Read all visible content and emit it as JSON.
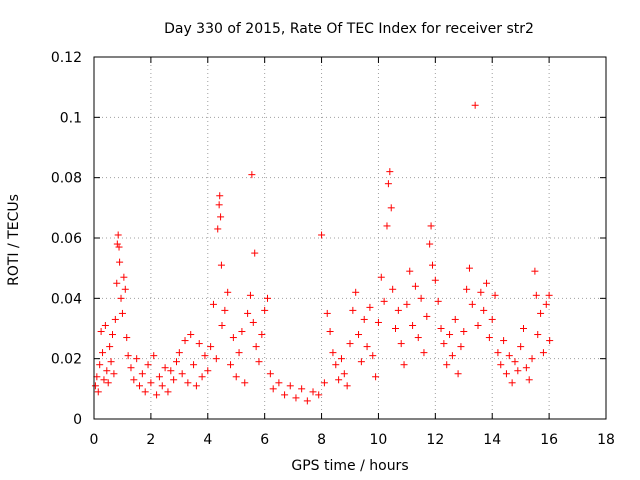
{
  "chart_data": {
    "type": "scatter",
    "title": "Day 330 of 2015, Rate Of TEC Index for receiver str2",
    "xlabel": "GPS time / hours",
    "ylabel": "ROTI / TECUs",
    "xlim": [
      0,
      18
    ],
    "ylim": [
      0,
      0.12
    ],
    "xticks": [
      0,
      2,
      4,
      6,
      8,
      10,
      12,
      14,
      16,
      18
    ],
    "xtick_labels": [
      "0",
      "2",
      "4",
      "6",
      "8",
      "10",
      "12",
      "14",
      "16",
      "18"
    ],
    "yticks": [
      0,
      0.02,
      0.04,
      0.06,
      0.08,
      0.1,
      0.12
    ],
    "ytick_labels": [
      "0",
      "0.02",
      "0.04",
      "0.06",
      "0.08",
      "0.1",
      "0.12"
    ],
    "grid": true,
    "marker": "+",
    "color": "#ff0000",
    "series": [
      {
        "name": "ROTI str2",
        "points": [
          [
            0.05,
            0.011
          ],
          [
            0.1,
            0.014
          ],
          [
            0.15,
            0.009
          ],
          [
            0.2,
            0.018
          ],
          [
            0.25,
            0.029
          ],
          [
            0.3,
            0.022
          ],
          [
            0.35,
            0.013
          ],
          [
            0.4,
            0.031
          ],
          [
            0.45,
            0.016
          ],
          [
            0.5,
            0.012
          ],
          [
            0.55,
            0.024
          ],
          [
            0.6,
            0.019
          ],
          [
            0.65,
            0.028
          ],
          [
            0.7,
            0.015
          ],
          [
            0.75,
            0.033
          ],
          [
            0.8,
            0.045
          ],
          [
            0.82,
            0.058
          ],
          [
            0.85,
            0.061
          ],
          [
            0.88,
            0.057
          ],
          [
            0.9,
            0.052
          ],
          [
            0.95,
            0.04
          ],
          [
            1.0,
            0.035
          ],
          [
            1.05,
            0.047
          ],
          [
            1.1,
            0.043
          ],
          [
            1.15,
            0.027
          ],
          [
            1.2,
            0.021
          ],
          [
            1.3,
            0.017
          ],
          [
            1.4,
            0.013
          ],
          [
            1.5,
            0.02
          ],
          [
            1.6,
            0.011
          ],
          [
            1.7,
            0.015
          ],
          [
            1.8,
            0.009
          ],
          [
            1.9,
            0.018
          ],
          [
            2.0,
            0.012
          ],
          [
            2.1,
            0.021
          ],
          [
            2.2,
            0.008
          ],
          [
            2.3,
            0.014
          ],
          [
            2.4,
            0.011
          ],
          [
            2.5,
            0.017
          ],
          [
            2.6,
            0.009
          ],
          [
            2.7,
            0.016
          ],
          [
            2.8,
            0.013
          ],
          [
            2.9,
            0.019
          ],
          [
            3.0,
            0.022
          ],
          [
            3.1,
            0.015
          ],
          [
            3.2,
            0.026
          ],
          [
            3.3,
            0.012
          ],
          [
            3.4,
            0.028
          ],
          [
            3.5,
            0.018
          ],
          [
            3.6,
            0.011
          ],
          [
            3.7,
            0.025
          ],
          [
            3.8,
            0.014
          ],
          [
            3.9,
            0.021
          ],
          [
            4.0,
            0.016
          ],
          [
            4.1,
            0.024
          ],
          [
            4.2,
            0.038
          ],
          [
            4.3,
            0.02
          ],
          [
            4.35,
            0.063
          ],
          [
            4.4,
            0.071
          ],
          [
            4.42,
            0.074
          ],
          [
            4.45,
            0.067
          ],
          [
            4.48,
            0.051
          ],
          [
            4.5,
            0.031
          ],
          [
            4.6,
            0.036
          ],
          [
            4.7,
            0.042
          ],
          [
            4.8,
            0.018
          ],
          [
            4.9,
            0.027
          ],
          [
            5.0,
            0.014
          ],
          [
            5.1,
            0.022
          ],
          [
            5.2,
            0.029
          ],
          [
            5.3,
            0.012
          ],
          [
            5.4,
            0.035
          ],
          [
            5.5,
            0.041
          ],
          [
            5.55,
            0.081
          ],
          [
            5.6,
            0.032
          ],
          [
            5.65,
            0.055
          ],
          [
            5.7,
            0.024
          ],
          [
            5.8,
            0.019
          ],
          [
            5.9,
            0.028
          ],
          [
            6.0,
            0.036
          ],
          [
            6.1,
            0.04
          ],
          [
            6.2,
            0.015
          ],
          [
            6.3,
            0.01
          ],
          [
            6.5,
            0.012
          ],
          [
            6.7,
            0.008
          ],
          [
            6.9,
            0.011
          ],
          [
            7.1,
            0.007
          ],
          [
            7.3,
            0.01
          ],
          [
            7.5,
            0.006
          ],
          [
            7.7,
            0.009
          ],
          [
            7.9,
            0.008
          ],
          [
            8.0,
            0.061
          ],
          [
            8.1,
            0.012
          ],
          [
            8.2,
            0.035
          ],
          [
            8.3,
            0.029
          ],
          [
            8.4,
            0.022
          ],
          [
            8.5,
            0.018
          ],
          [
            8.6,
            0.013
          ],
          [
            8.7,
            0.02
          ],
          [
            8.8,
            0.015
          ],
          [
            8.9,
            0.011
          ],
          [
            9.0,
            0.025
          ],
          [
            9.1,
            0.036
          ],
          [
            9.2,
            0.042
          ],
          [
            9.3,
            0.028
          ],
          [
            9.4,
            0.019
          ],
          [
            9.5,
            0.033
          ],
          [
            9.6,
            0.024
          ],
          [
            9.7,
            0.037
          ],
          [
            9.8,
            0.021
          ],
          [
            9.9,
            0.014
          ],
          [
            10.0,
            0.032
          ],
          [
            10.1,
            0.047
          ],
          [
            10.2,
            0.039
          ],
          [
            10.3,
            0.064
          ],
          [
            10.35,
            0.078
          ],
          [
            10.4,
            0.082
          ],
          [
            10.45,
            0.07
          ],
          [
            10.5,
            0.043
          ],
          [
            10.6,
            0.03
          ],
          [
            10.7,
            0.036
          ],
          [
            10.8,
            0.025
          ],
          [
            10.9,
            0.018
          ],
          [
            11.0,
            0.038
          ],
          [
            11.1,
            0.049
          ],
          [
            11.2,
            0.031
          ],
          [
            11.3,
            0.044
          ],
          [
            11.4,
            0.027
          ],
          [
            11.5,
            0.04
          ],
          [
            11.6,
            0.022
          ],
          [
            11.7,
            0.034
          ],
          [
            11.8,
            0.058
          ],
          [
            11.85,
            0.064
          ],
          [
            11.9,
            0.051
          ],
          [
            12.0,
            0.046
          ],
          [
            12.1,
            0.039
          ],
          [
            12.2,
            0.03
          ],
          [
            12.3,
            0.025
          ],
          [
            12.4,
            0.018
          ],
          [
            12.5,
            0.028
          ],
          [
            12.6,
            0.021
          ],
          [
            12.7,
            0.033
          ],
          [
            12.8,
            0.015
          ],
          [
            12.9,
            0.024
          ],
          [
            13.0,
            0.029
          ],
          [
            13.1,
            0.043
          ],
          [
            13.2,
            0.05
          ],
          [
            13.3,
            0.038
          ],
          [
            13.4,
            0.104
          ],
          [
            13.5,
            0.031
          ],
          [
            13.6,
            0.042
          ],
          [
            13.7,
            0.036
          ],
          [
            13.8,
            0.045
          ],
          [
            13.9,
            0.027
          ],
          [
            14.0,
            0.033
          ],
          [
            14.1,
            0.041
          ],
          [
            14.2,
            0.022
          ],
          [
            14.3,
            0.018
          ],
          [
            14.4,
            0.026
          ],
          [
            14.5,
            0.015
          ],
          [
            14.6,
            0.021
          ],
          [
            14.7,
            0.012
          ],
          [
            14.8,
            0.019
          ],
          [
            14.9,
            0.016
          ],
          [
            15.0,
            0.024
          ],
          [
            15.1,
            0.03
          ],
          [
            15.2,
            0.017
          ],
          [
            15.3,
            0.013
          ],
          [
            15.4,
            0.02
          ],
          [
            15.5,
            0.049
          ],
          [
            15.55,
            0.041
          ],
          [
            15.6,
            0.028
          ],
          [
            15.7,
            0.035
          ],
          [
            15.8,
            0.022
          ],
          [
            15.9,
            0.038
          ],
          [
            16.0,
            0.041
          ],
          [
            16.02,
            0.026
          ]
        ]
      }
    ]
  }
}
